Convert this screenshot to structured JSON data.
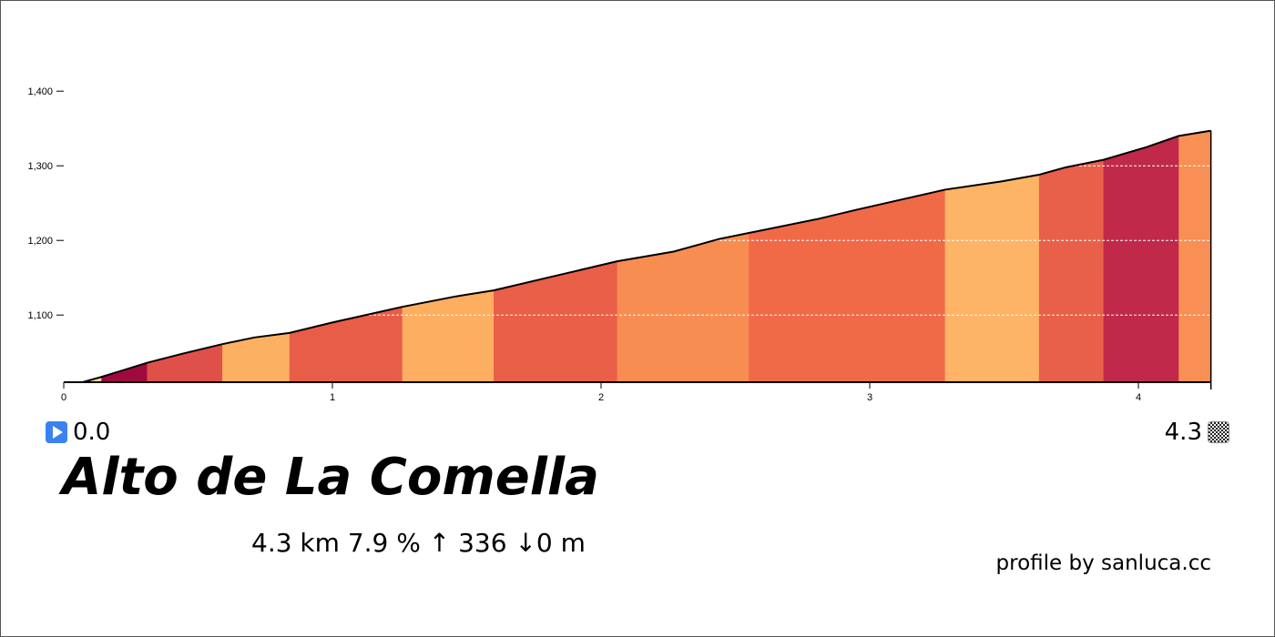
{
  "chart_data": {
    "type": "area",
    "title": "Alto de La Comella",
    "xlim": [
      0,
      4.27
    ],
    "ylim": [
      1010,
      1400
    ],
    "x_ticks": [
      0,
      1,
      2,
      3,
      4
    ],
    "y_ticks": [
      1100,
      1200,
      1300,
      1400
    ],
    "y_tick_labels": [
      "1,100",
      "1,200",
      "1,300",
      "1,400"
    ],
    "grid": "horizontal dashed white inside area",
    "profile": [
      [
        0,
        1010
      ],
      [
        0.07,
        1010
      ],
      [
        0.14,
        1017
      ],
      [
        0.31,
        1036
      ],
      [
        0.44,
        1048
      ],
      [
        0.59,
        1061
      ],
      [
        0.71,
        1070
      ],
      [
        0.84,
        1076
      ],
      [
        1.0,
        1090
      ],
      [
        1.26,
        1111
      ],
      [
        1.46,
        1125
      ],
      [
        1.6,
        1133
      ],
      [
        1.8,
        1150
      ],
      [
        2.06,
        1172
      ],
      [
        2.27,
        1185
      ],
      [
        2.44,
        1202
      ],
      [
        2.55,
        1210
      ],
      [
        2.81,
        1229
      ],
      [
        2.95,
        1241
      ],
      [
        3.28,
        1268
      ],
      [
        3.49,
        1279
      ],
      [
        3.63,
        1288
      ],
      [
        3.73,
        1298
      ],
      [
        3.87,
        1308
      ],
      [
        4.03,
        1325
      ],
      [
        4.15,
        1340
      ],
      [
        4.27,
        1347
      ]
    ],
    "segments": [
      {
        "from": 0,
        "to": 0.14,
        "color": "#fee08b"
      },
      {
        "from": 0.14,
        "to": 0.31,
        "color": "#9e0a40"
      },
      {
        "from": 0.31,
        "to": 0.59,
        "color": "#e0504a"
      },
      {
        "from": 0.59,
        "to": 0.84,
        "color": "#fbb062"
      },
      {
        "from": 0.84,
        "to": 1.26,
        "color": "#e85d47"
      },
      {
        "from": 1.26,
        "to": 1.6,
        "color": "#fdae61"
      },
      {
        "from": 1.6,
        "to": 2.06,
        "color": "#e95f47"
      },
      {
        "from": 2.06,
        "to": 2.55,
        "color": "#f88d52"
      },
      {
        "from": 2.55,
        "to": 3.28,
        "color": "#f06a48"
      },
      {
        "from": 3.28,
        "to": 3.63,
        "color": "#fdb466"
      },
      {
        "from": 3.63,
        "to": 3.87,
        "color": "#e8604a"
      },
      {
        "from": 3.87,
        "to": 4.15,
        "color": "#c0294a"
      },
      {
        "from": 4.15,
        "to": 4.27,
        "color": "#f88f55"
      }
    ]
  },
  "start": {
    "label": "0.0",
    "icon": "play-icon",
    "color": "#3b82f0"
  },
  "end": {
    "label": "4.3",
    "icon": "checkered-flag-icon"
  },
  "title": "Alto de La Comella",
  "stats": "4.3 km 7.9 %  ↑ 336 ↓0 m",
  "credit": "profile by sanluca.cc"
}
